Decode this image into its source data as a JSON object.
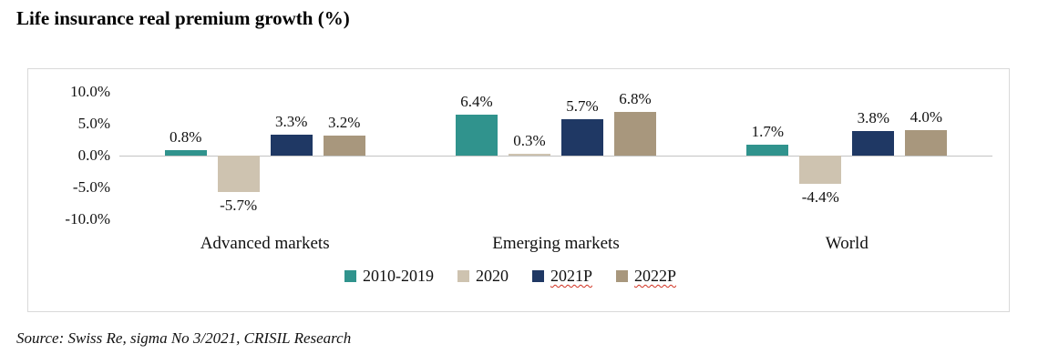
{
  "title": "Life insurance real premium growth (%)",
  "source": "Source: Swiss Re, sigma No 3/2021, CRISIL Research",
  "chart_data": {
    "type": "bar",
    "title": "Life insurance real premium growth (%)",
    "categories": [
      "Advanced markets",
      "Emerging markets",
      "World"
    ],
    "series": [
      {
        "name": "2010-2019",
        "color": "#30938d",
        "wavy_underline": false,
        "values": [
          0.8,
          6.4,
          1.7
        ]
      },
      {
        "name": "2020",
        "color": "#cec3b0",
        "wavy_underline": false,
        "values": [
          -5.7,
          0.3,
          -4.4
        ]
      },
      {
        "name": "2021P",
        "color": "#1f3864",
        "wavy_underline": true,
        "values": [
          3.3,
          5.7,
          3.8
        ]
      },
      {
        "name": "2022P",
        "color": "#a8977d",
        "wavy_underline": true,
        "values": [
          3.2,
          6.8,
          4.0
        ]
      }
    ],
    "y_ticks": [
      "10.0%",
      "5.0%",
      "0.0%",
      "-5.0%",
      "-10.0%"
    ],
    "ylim": [
      -10,
      10
    ],
    "value_label_format": "{value}%",
    "grid": "zero-line-only",
    "legend_position": "bottom"
  }
}
